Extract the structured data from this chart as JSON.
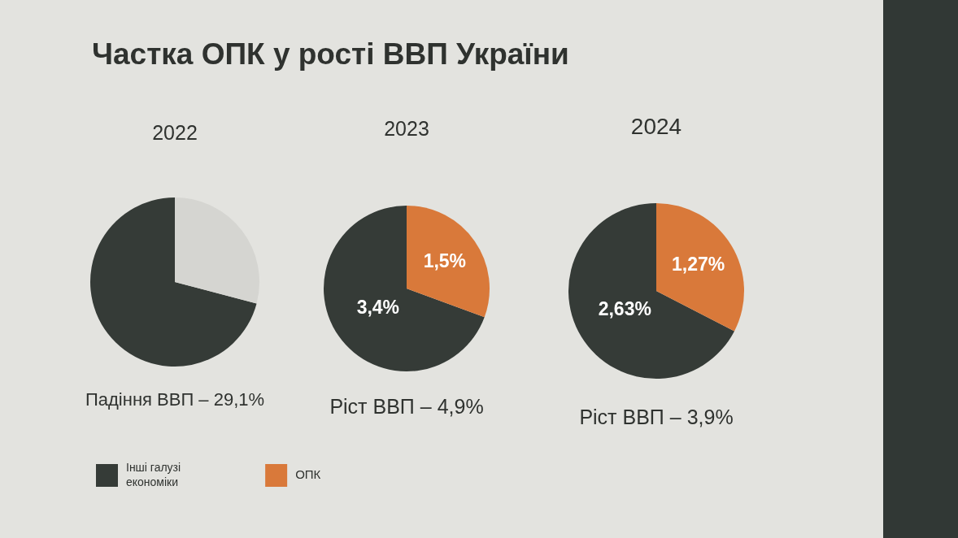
{
  "chart_data": [
    {
      "type": "other",
      "title": "Частка ОПК у рості ВВП України"
    },
    {
      "type": "pie",
      "title": "2022",
      "categories": [
        null,
        null
      ],
      "values": [
        70.9,
        29.1
      ],
      "colors": [
        "#353b37",
        "#d5d5d1"
      ],
      "annotations": [
        "Падіння ВВП – 29,1%"
      ]
    },
    {
      "type": "pie",
      "title": "2023",
      "categories": [
        "Інші галузі економіки",
        "ОПК"
      ],
      "values": [
        3.4,
        1.5
      ],
      "colors": [
        "#353b37",
        "#d9793a"
      ],
      "value_labels": [
        "3,4%",
        "1,5%"
      ],
      "annotations": [
        "Ріст ВВП – 4,9%"
      ],
      "legend": "bottom left"
    },
    {
      "type": "pie",
      "title": "2024",
      "categories": [
        null,
        null
      ],
      "values": [
        2.63,
        1.27
      ],
      "colors": [
        "#353b37",
        "#d9793a"
      ],
      "value_labels": [
        "2,63%",
        "1,27%"
      ],
      "annotations": [
        "Ріст ВВП – 3,9%"
      ]
    }
  ]
}
